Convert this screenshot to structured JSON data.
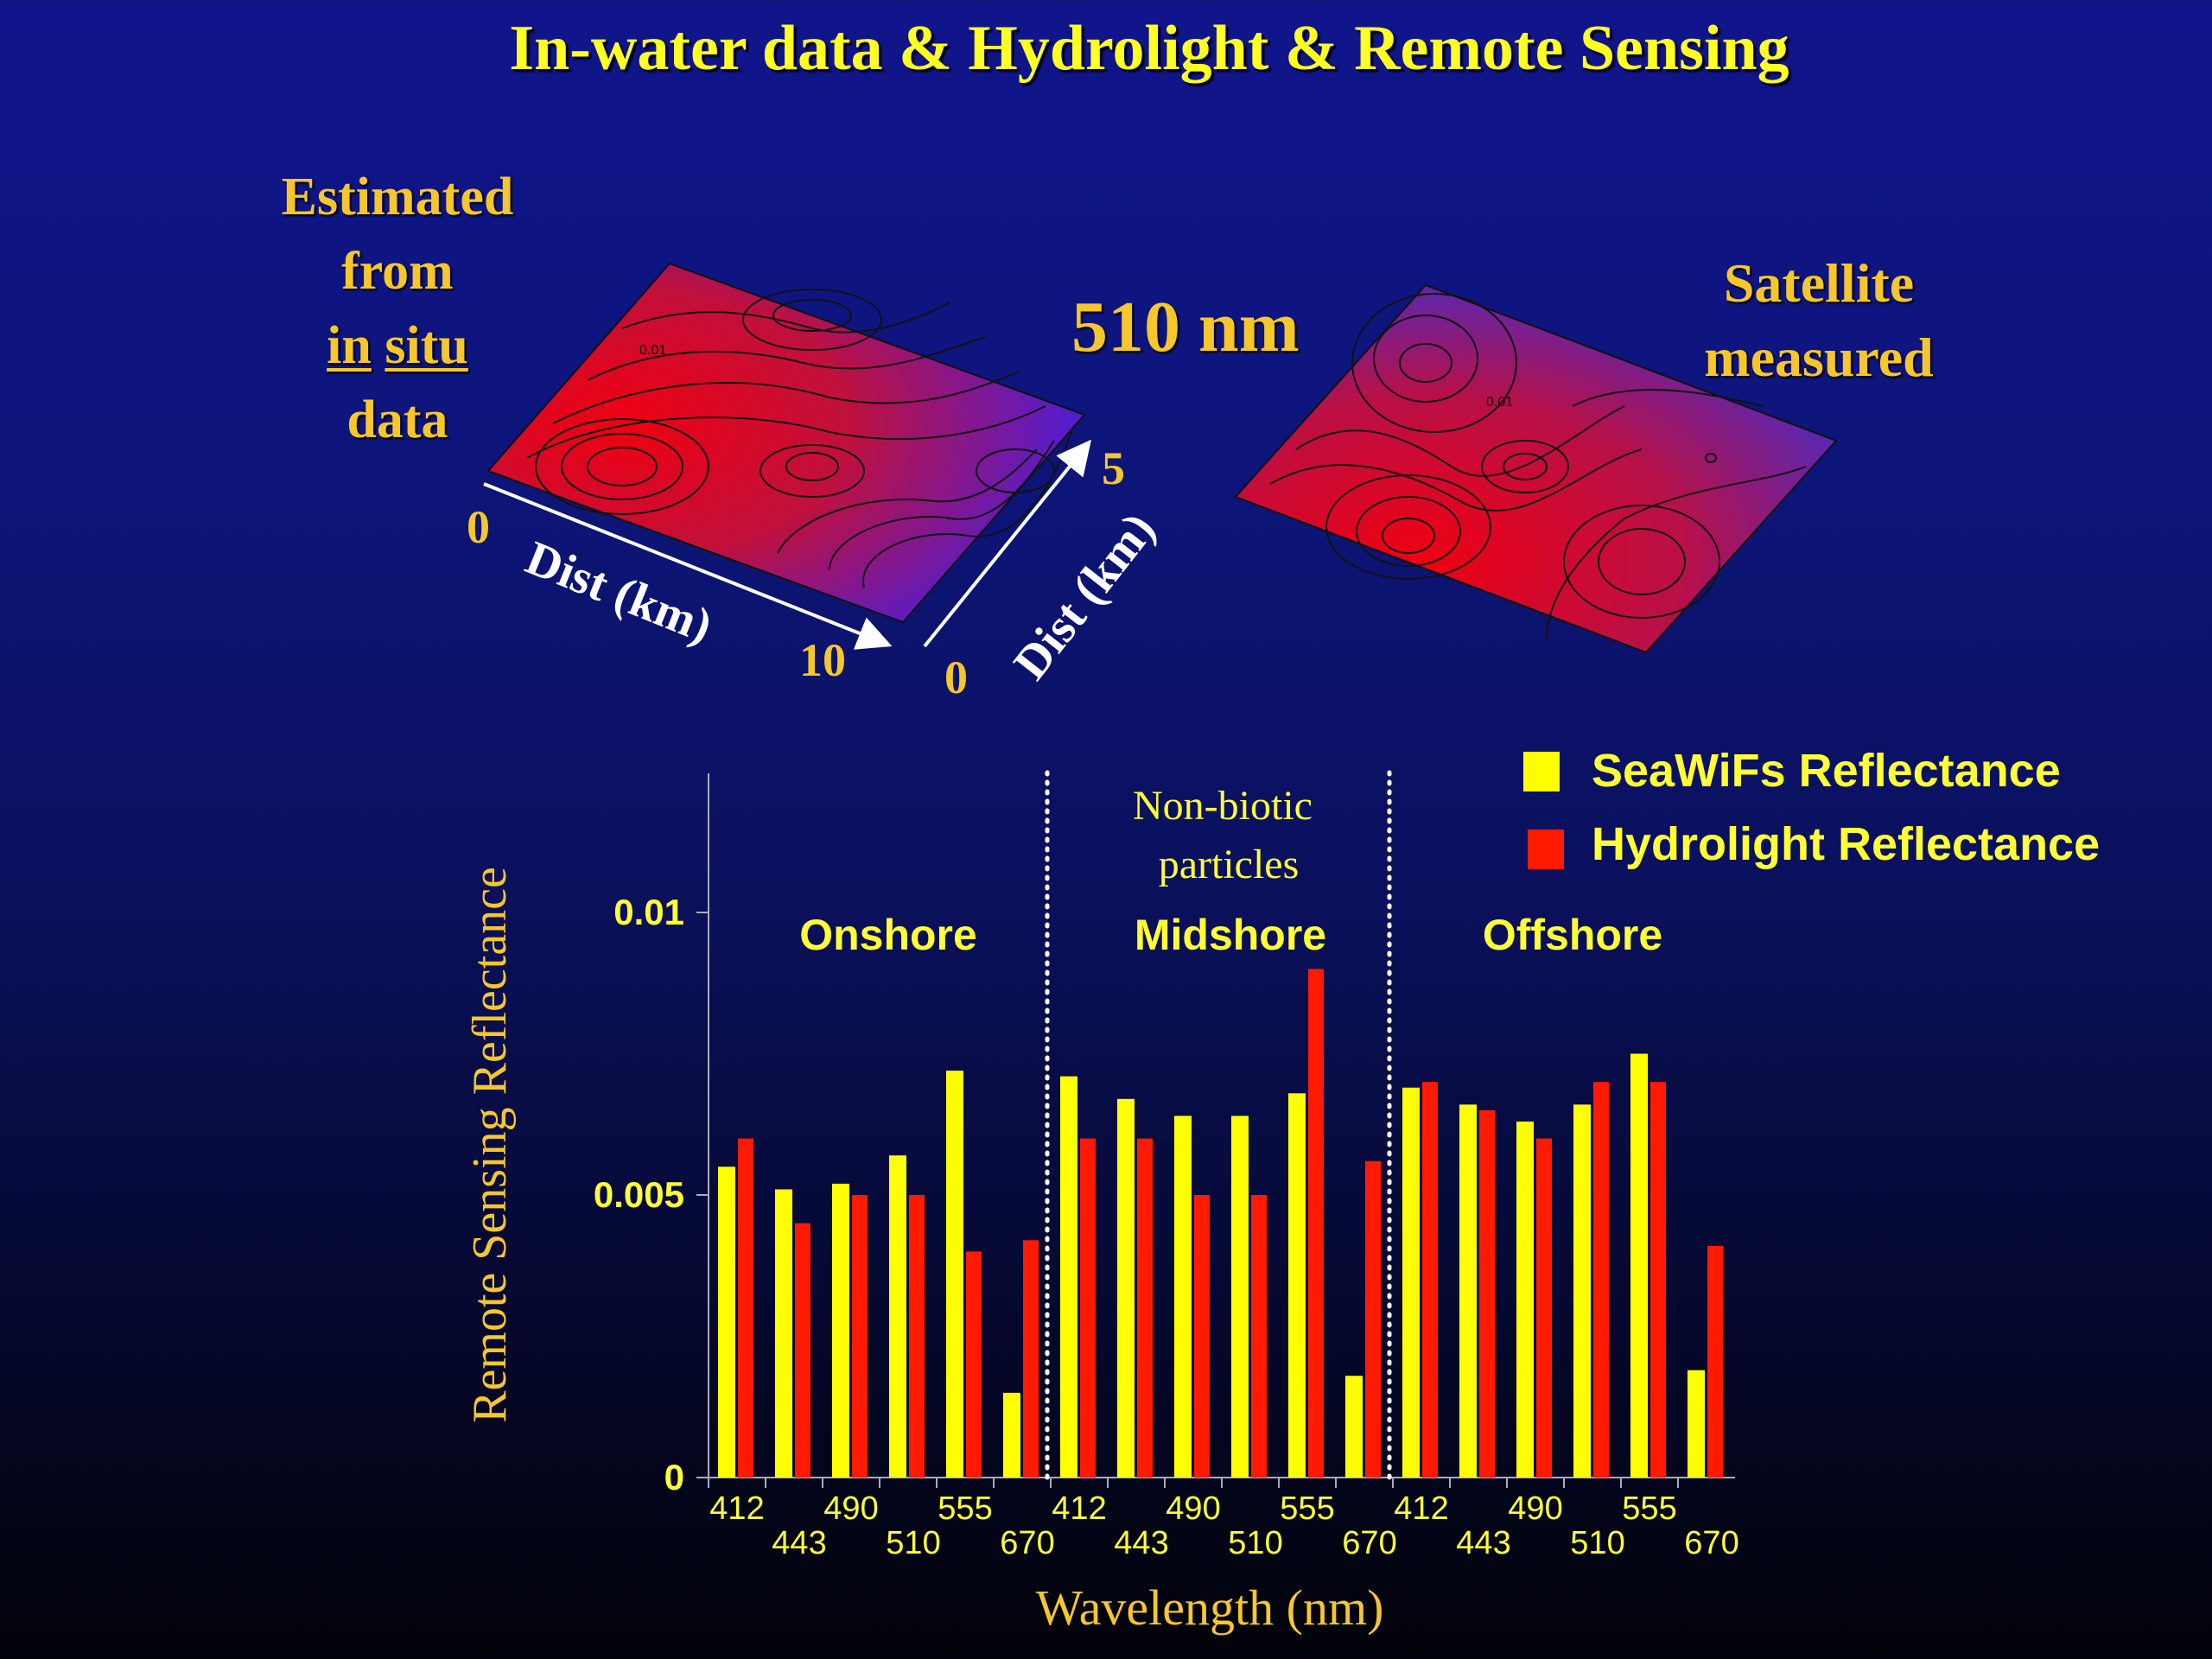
{
  "title": "In-water data & Hydrolight & Remote Sensing",
  "left_note": {
    "line1": "Estimated",
    "line2": "from",
    "in": "in",
    "situ": "situ",
    "line4": "data"
  },
  "wavelength_label": "510 nm",
  "right_note": {
    "line1": "Satellite",
    "line2": "measured"
  },
  "map_axes": {
    "x_label": "Dist (km)",
    "x_min": "0",
    "x_max": "10",
    "y_label": "Dist (km)",
    "y_min": "0",
    "y_max": "5",
    "contour_label": "0.01"
  },
  "colors": {
    "seawifs": "#ffff00",
    "hydrolight": "#ff1a00",
    "label_yellow": "#ffff33",
    "accent_gold": "#f6c72a"
  },
  "chart_data": {
    "type": "bar",
    "ylabel": "Remote Sensing Reflectance",
    "xlabel": "Wavelength (nm)",
    "ylim": [
      0,
      0.01
    ],
    "yticks": [
      "0",
      "0.005",
      "0.01"
    ],
    "legend": [
      "SeaWiFs  Reflectance",
      "Hydrolight  Reflectance"
    ],
    "annotation": {
      "line1": "Non-biotic",
      "line2": "particles"
    },
    "groups": [
      {
        "name": "Onshore",
        "categories": [
          "412",
          "443",
          "490",
          "510",
          "555",
          "670"
        ],
        "seawifs": [
          0.0055,
          0.0051,
          0.0052,
          0.0057,
          0.0072,
          0.0015
        ],
        "hydrolight": [
          0.006,
          0.0045,
          0.005,
          0.005,
          0.004,
          0.0042
        ]
      },
      {
        "name": "Midshore",
        "categories": [
          "412",
          "443",
          "490",
          "510",
          "555",
          "670"
        ],
        "seawifs": [
          0.0071,
          0.0067,
          0.0064,
          0.0064,
          0.0068,
          0.0018
        ],
        "hydrolight": [
          0.006,
          0.006,
          0.005,
          0.005,
          0.009,
          0.0056
        ]
      },
      {
        "name": "Offshore",
        "categories": [
          "412",
          "443",
          "490",
          "510",
          "555",
          "670"
        ],
        "seawifs": [
          0.0069,
          0.0066,
          0.0063,
          0.0066,
          0.0075,
          0.0019
        ],
        "hydrolight": [
          0.007,
          0.0065,
          0.006,
          0.007,
          0.007,
          0.0041
        ]
      }
    ]
  }
}
